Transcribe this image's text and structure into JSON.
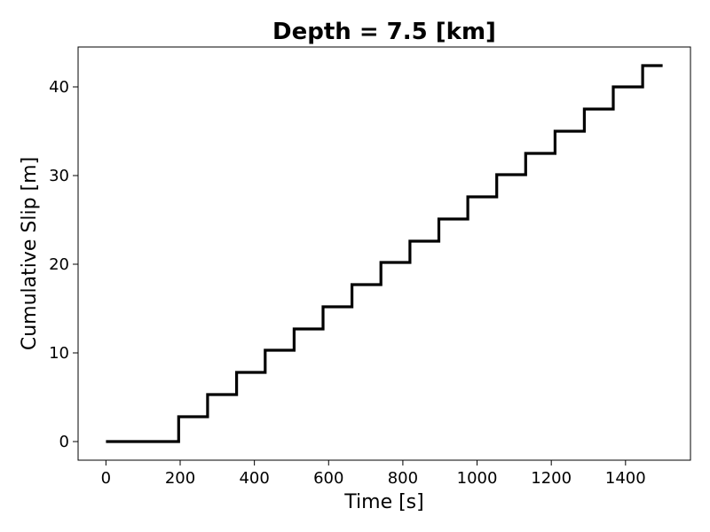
{
  "chart_data": {
    "type": "line",
    "title": "Depth = 7.5 [km]",
    "xlabel": "Time [s]",
    "ylabel": "Cumulative Slip [m]",
    "xlim": [
      -75,
      1575
    ],
    "ylim": [
      -2.1,
      44.5
    ],
    "xticks": [
      0,
      200,
      400,
      600,
      800,
      1000,
      1200,
      1400
    ],
    "yticks": [
      0,
      10,
      20,
      30,
      40
    ],
    "grid": false,
    "line_style": "step",
    "line_color": "#000000",
    "series": [
      {
        "x": [
          0,
          196,
          196,
          274,
          274,
          352,
          352,
          429,
          429,
          507,
          507,
          585,
          585,
          663,
          663,
          741,
          741,
          819,
          819,
          897,
          897,
          975,
          975,
          1053,
          1053,
          1131,
          1131,
          1210,
          1210,
          1289,
          1289,
          1367,
          1367,
          1446,
          1446,
          1500
        ],
        "y": [
          0,
          0,
          2.8,
          2.8,
          5.3,
          5.3,
          7.8,
          7.8,
          10.3,
          10.3,
          12.7,
          12.7,
          15.2,
          15.2,
          17.7,
          17.7,
          20.2,
          20.2,
          22.6,
          22.6,
          25.1,
          25.1,
          27.6,
          27.6,
          30.1,
          30.1,
          32.5,
          32.5,
          35.0,
          35.0,
          37.5,
          37.5,
          40.0,
          40.0,
          42.4,
          42.4
        ]
      }
    ]
  }
}
